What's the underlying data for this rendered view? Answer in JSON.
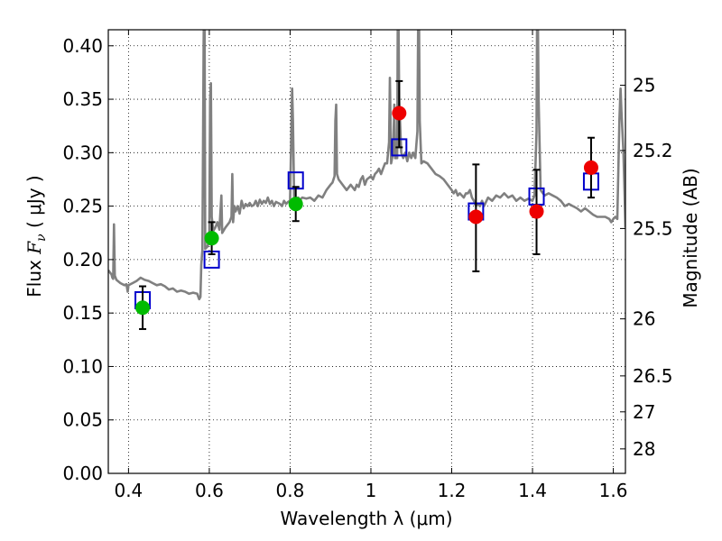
{
  "chart_data": {
    "type": "scatter",
    "xlabel": "Wavelength  λ (μm)",
    "ylabel_left": {
      "prefix": "Flux  ",
      "symbol": "F",
      "subscript": "ν",
      "suffix": "  ( μJy )"
    },
    "ylabel_right": "Magnitude (AB)",
    "xlim": [
      0.35,
      1.63
    ],
    "ylim": [
      0.0,
      0.415
    ],
    "grid": true,
    "x_ticks": [
      {
        "value": 0.4,
        "label": "0.4"
      },
      {
        "value": 0.6,
        "label": "0.6"
      },
      {
        "value": 0.8,
        "label": "0.8"
      },
      {
        "value": 1.0,
        "label": "1"
      },
      {
        "value": 1.2,
        "label": "1.2"
      },
      {
        "value": 1.4,
        "label": "1.4"
      },
      {
        "value": 1.6,
        "label": "1.6"
      }
    ],
    "y_ticks": [
      {
        "value": 0.0,
        "label": "0.00"
      },
      {
        "value": 0.05,
        "label": "0.05"
      },
      {
        "value": 0.1,
        "label": "0.10"
      },
      {
        "value": 0.15,
        "label": "0.15"
      },
      {
        "value": 0.2,
        "label": "0.20"
      },
      {
        "value": 0.25,
        "label": "0.25"
      },
      {
        "value": 0.3,
        "label": "0.30"
      },
      {
        "value": 0.35,
        "label": "0.35"
      },
      {
        "value": 0.4,
        "label": "0.40"
      }
    ],
    "right_ticks": [
      {
        "mag": 25,
        "label": "25"
      },
      {
        "mag": 25.2,
        "label": "25.2"
      },
      {
        "mag": 25.5,
        "label": "25.5"
      },
      {
        "mag": 26,
        "label": "26"
      },
      {
        "mag": 26.5,
        "label": "26.5"
      },
      {
        "mag": 27,
        "label": "27"
      },
      {
        "mag": 28,
        "label": "28"
      }
    ],
    "series": [
      {
        "kind": "line",
        "color": "#808080",
        "points": [
          [
            0.35,
            0.19
          ],
          [
            0.358,
            0.186
          ],
          [
            0.36,
            0.183
          ],
          [
            0.362,
            0.182
          ],
          [
            0.364,
            0.233
          ],
          [
            0.366,
            0.185
          ],
          [
            0.37,
            0.181
          ],
          [
            0.38,
            0.178
          ],
          [
            0.39,
            0.176
          ],
          [
            0.395,
            0.177
          ],
          [
            0.398,
            0.17
          ],
          [
            0.4,
            0.176
          ],
          [
            0.41,
            0.178
          ],
          [
            0.42,
            0.18
          ],
          [
            0.43,
            0.183
          ],
          [
            0.44,
            0.181
          ],
          [
            0.45,
            0.18
          ],
          [
            0.46,
            0.178
          ],
          [
            0.47,
            0.176
          ],
          [
            0.48,
            0.177
          ],
          [
            0.49,
            0.175
          ],
          [
            0.5,
            0.172
          ],
          [
            0.51,
            0.173
          ],
          [
            0.52,
            0.17
          ],
          [
            0.53,
            0.171
          ],
          [
            0.54,
            0.17
          ],
          [
            0.55,
            0.168
          ],
          [
            0.56,
            0.169
          ],
          [
            0.57,
            0.168
          ],
          [
            0.575,
            0.163
          ],
          [
            0.578,
            0.165
          ],
          [
            0.58,
            0.195
          ],
          [
            0.583,
            0.21
          ],
          [
            0.586,
            0.4
          ],
          [
            0.588,
            0.48
          ],
          [
            0.59,
            0.21
          ],
          [
            0.595,
            0.212
          ],
          [
            0.6,
            0.218
          ],
          [
            0.602,
            0.35
          ],
          [
            0.604,
            0.365
          ],
          [
            0.606,
            0.24
          ],
          [
            0.61,
            0.227
          ],
          [
            0.615,
            0.23
          ],
          [
            0.62,
            0.235
          ],
          [
            0.625,
            0.228
          ],
          [
            0.63,
            0.26
          ],
          [
            0.632,
            0.225
          ],
          [
            0.64,
            0.23
          ],
          [
            0.65,
            0.235
          ],
          [
            0.655,
            0.24
          ],
          [
            0.657,
            0.28
          ],
          [
            0.659,
            0.235
          ],
          [
            0.662,
            0.25
          ],
          [
            0.665,
            0.245
          ],
          [
            0.67,
            0.25
          ],
          [
            0.675,
            0.243
          ],
          [
            0.68,
            0.255
          ],
          [
            0.685,
            0.248
          ],
          [
            0.69,
            0.252
          ],
          [
            0.695,
            0.25
          ],
          [
            0.7,
            0.253
          ],
          [
            0.705,
            0.25
          ],
          [
            0.71,
            0.251
          ],
          [
            0.715,
            0.255
          ],
          [
            0.72,
            0.25
          ],
          [
            0.725,
            0.256
          ],
          [
            0.73,
            0.252
          ],
          [
            0.735,
            0.255
          ],
          [
            0.74,
            0.253
          ],
          [
            0.745,
            0.258
          ],
          [
            0.75,
            0.252
          ],
          [
            0.755,
            0.255
          ],
          [
            0.76,
            0.25
          ],
          [
            0.765,
            0.254
          ],
          [
            0.77,
            0.253
          ],
          [
            0.775,
            0.252
          ],
          [
            0.78,
            0.25
          ],
          [
            0.785,
            0.255
          ],
          [
            0.79,
            0.252
          ],
          [
            0.795,
            0.254
          ],
          [
            0.8,
            0.255
          ],
          [
            0.805,
            0.36
          ],
          [
            0.807,
            0.33
          ],
          [
            0.81,
            0.258
          ],
          [
            0.815,
            0.255
          ],
          [
            0.82,
            0.258
          ],
          [
            0.825,
            0.256
          ],
          [
            0.83,
            0.258
          ],
          [
            0.84,
            0.257
          ],
          [
            0.85,
            0.258
          ],
          [
            0.86,
            0.255
          ],
          [
            0.87,
            0.26
          ],
          [
            0.88,
            0.258
          ],
          [
            0.89,
            0.265
          ],
          [
            0.9,
            0.27
          ],
          [
            0.905,
            0.272
          ],
          [
            0.91,
            0.278
          ],
          [
            0.912,
            0.33
          ],
          [
            0.914,
            0.345
          ],
          [
            0.916,
            0.28
          ],
          [
            0.92,
            0.275
          ],
          [
            0.93,
            0.27
          ],
          [
            0.94,
            0.265
          ],
          [
            0.95,
            0.27
          ],
          [
            0.96,
            0.265
          ],
          [
            0.965,
            0.27
          ],
          [
            0.97,
            0.268
          ],
          [
            0.975,
            0.275
          ],
          [
            0.98,
            0.278
          ],
          [
            0.985,
            0.27
          ],
          [
            0.99,
            0.275
          ],
          [
            1.0,
            0.278
          ],
          [
            1.005,
            0.275
          ],
          [
            1.01,
            0.28
          ],
          [
            1.015,
            0.282
          ],
          [
            1.02,
            0.285
          ],
          [
            1.025,
            0.28
          ],
          [
            1.03,
            0.285
          ],
          [
            1.035,
            0.29
          ],
          [
            1.04,
            0.29
          ],
          [
            1.045,
            0.31
          ],
          [
            1.047,
            0.37
          ],
          [
            1.05,
            0.29
          ],
          [
            1.055,
            0.3
          ],
          [
            1.058,
            0.345
          ],
          [
            1.06,
            0.295
          ],
          [
            1.065,
            0.295
          ],
          [
            1.067,
            0.48
          ],
          [
            1.07,
            0.35
          ],
          [
            1.075,
            0.3
          ],
          [
            1.08,
            0.295
          ],
          [
            1.085,
            0.3
          ],
          [
            1.09,
            0.292
          ],
          [
            1.095,
            0.3
          ],
          [
            1.1,
            0.295
          ],
          [
            1.105,
            0.3
          ],
          [
            1.11,
            0.295
          ],
          [
            1.115,
            0.32
          ],
          [
            1.118,
            0.48
          ],
          [
            1.121,
            0.33
          ],
          [
            1.125,
            0.29
          ],
          [
            1.13,
            0.292
          ],
          [
            1.14,
            0.29
          ],
          [
            1.15,
            0.285
          ],
          [
            1.16,
            0.28
          ],
          [
            1.17,
            0.278
          ],
          [
            1.18,
            0.275
          ],
          [
            1.19,
            0.27
          ],
          [
            1.2,
            0.265
          ],
          [
            1.205,
            0.262
          ],
          [
            1.21,
            0.265
          ],
          [
            1.215,
            0.26
          ],
          [
            1.22,
            0.262
          ],
          [
            1.225,
            0.26
          ],
          [
            1.23,
            0.258
          ],
          [
            1.235,
            0.262
          ],
          [
            1.24,
            0.262
          ],
          [
            1.245,
            0.265
          ],
          [
            1.25,
            0.258
          ],
          [
            1.255,
            0.255
          ],
          [
            1.26,
            0.25
          ],
          [
            1.265,
            0.252
          ],
          [
            1.27,
            0.25
          ],
          [
            1.275,
            0.255
          ],
          [
            1.28,
            0.25
          ],
          [
            1.29,
            0.258
          ],
          [
            1.3,
            0.255
          ],
          [
            1.31,
            0.26
          ],
          [
            1.32,
            0.258
          ],
          [
            1.33,
            0.262
          ],
          [
            1.34,
            0.258
          ],
          [
            1.35,
            0.26
          ],
          [
            1.36,
            0.255
          ],
          [
            1.37,
            0.258
          ],
          [
            1.38,
            0.255
          ],
          [
            1.39,
            0.257
          ],
          [
            1.4,
            0.255
          ],
          [
            1.405,
            0.26
          ],
          [
            1.41,
            0.32
          ],
          [
            1.412,
            0.48
          ],
          [
            1.415,
            0.35
          ],
          [
            1.42,
            0.265
          ],
          [
            1.43,
            0.26
          ],
          [
            1.44,
            0.262
          ],
          [
            1.45,
            0.26
          ],
          [
            1.46,
            0.258
          ],
          [
            1.47,
            0.255
          ],
          [
            1.48,
            0.25
          ],
          [
            1.49,
            0.252
          ],
          [
            1.5,
            0.25
          ],
          [
            1.51,
            0.248
          ],
          [
            1.52,
            0.245
          ],
          [
            1.53,
            0.248
          ],
          [
            1.54,
            0.245
          ],
          [
            1.55,
            0.242
          ],
          [
            1.56,
            0.24
          ],
          [
            1.57,
            0.24
          ],
          [
            1.58,
            0.24
          ],
          [
            1.59,
            0.238
          ],
          [
            1.595,
            0.235
          ],
          [
            1.6,
            0.238
          ],
          [
            1.605,
            0.24
          ],
          [
            1.61,
            0.238
          ],
          [
            1.615,
            0.33
          ],
          [
            1.618,
            0.36
          ],
          [
            1.62,
            0.34
          ],
          [
            1.625,
            0.3
          ],
          [
            1.628,
            0.26
          ],
          [
            1.63,
            0.23
          ]
        ]
      },
      {
        "kind": "open-square",
        "color": "#0000cc",
        "points": [
          {
            "x": 0.435,
            "y": 0.162
          },
          {
            "x": 0.606,
            "y": 0.2
          },
          {
            "x": 0.814,
            "y": 0.274
          },
          {
            "x": 1.07,
            "y": 0.305
          },
          {
            "x": 1.26,
            "y": 0.245
          },
          {
            "x": 1.41,
            "y": 0.259
          },
          {
            "x": 1.545,
            "y": 0.273
          }
        ]
      },
      {
        "kind": "filled-circle",
        "color": "#00bb00",
        "points": [
          {
            "x": 0.435,
            "y": 0.155,
            "err": [
              0.135,
              0.175
            ]
          },
          {
            "x": 0.606,
            "y": 0.22,
            "err": [
              0.205,
              0.235
            ]
          },
          {
            "x": 0.814,
            "y": 0.252,
            "err": [
              0.236,
              0.268
            ]
          }
        ]
      },
      {
        "kind": "filled-circle",
        "color": "#ee0000",
        "points": [
          {
            "x": 1.07,
            "y": 0.337,
            "err": [
              0.305,
              0.367
            ]
          },
          {
            "x": 1.26,
            "y": 0.24,
            "err": [
              0.189,
              0.289
            ]
          },
          {
            "x": 1.41,
            "y": 0.245,
            "err": [
              0.205,
              0.284
            ]
          },
          {
            "x": 1.545,
            "y": 0.286,
            "err": [
              0.258,
              0.314
            ]
          }
        ]
      }
    ]
  }
}
